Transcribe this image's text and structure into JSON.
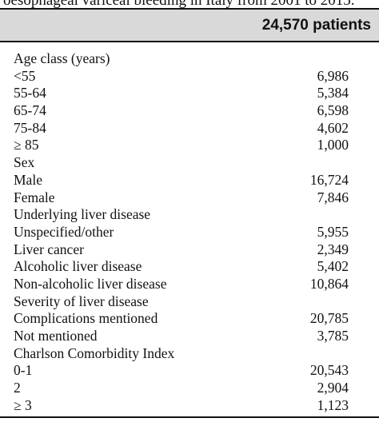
{
  "caption": "oesophageal variceal bleeding in Italy from 2001 to 2015.",
  "header": "24,570 patients",
  "rows": [
    {
      "label": "Age class (years)",
      "value": ""
    },
    {
      "label": "<55",
      "value": "6,986"
    },
    {
      "label": "55-64",
      "value": "5,384"
    },
    {
      "label": "65-74",
      "value": "6,598"
    },
    {
      "label": "75-84",
      "value": "4,602"
    },
    {
      "label": "≥ 85",
      "value": "1,000"
    },
    {
      "label": "Sex",
      "value": ""
    },
    {
      "label": "Male",
      "value": "16,724"
    },
    {
      "label": "Female",
      "value": "7,846"
    },
    {
      "label": "Underlying liver disease",
      "value": ""
    },
    {
      "label": "Unspecified/other",
      "value": "5,955"
    },
    {
      "label": "Liver cancer",
      "value": "2,349"
    },
    {
      "label": "Alcoholic liver disease",
      "value": "5,402"
    },
    {
      "label": "Non-alcoholic liver disease",
      "value": "10,864"
    },
    {
      "label": "Severity of liver disease",
      "value": ""
    },
    {
      "label": "Complications mentioned",
      "value": "20,785"
    },
    {
      "label": "Not mentioned",
      "value": "3,785"
    },
    {
      "label": "Charlson Comorbidity Index",
      "value": ""
    },
    {
      "label": "0-1",
      "value": "20,543"
    },
    {
      "label": "2",
      "value": "2,904"
    },
    {
      "label": "≥ 3",
      "value": "1,123"
    }
  ]
}
